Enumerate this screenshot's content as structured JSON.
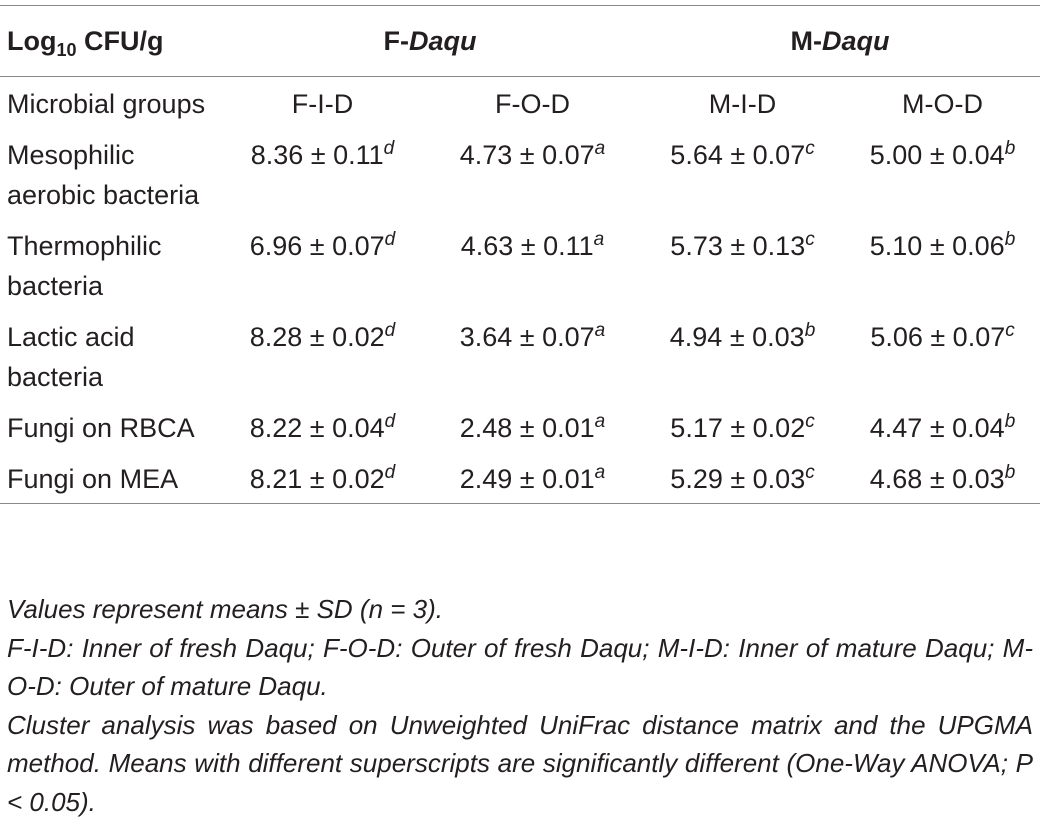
{
  "table": {
    "header": {
      "unit": {
        "prefix": "Log",
        "subscript": "10",
        "suffix": " CFU/g"
      },
      "groups": [
        {
          "prefix": "F-",
          "italic": "Daqu"
        },
        {
          "prefix": "M-",
          "italic": "Daqu"
        }
      ]
    },
    "columns_label": "Microbial groups",
    "columns": [
      "F-I-D",
      "F-O-D",
      "M-I-D",
      "M-O-D"
    ],
    "rows": [
      {
        "label": "Mesophilic aerobic bacteria",
        "cells": [
          {
            "value": "8.36 ± 0.11",
            "sup": "d"
          },
          {
            "value": "4.73 ± 0.07",
            "sup": "a"
          },
          {
            "value": "5.64 ± 0.07",
            "sup": "c"
          },
          {
            "value": "5.00 ± 0.04",
            "sup": "b"
          }
        ]
      },
      {
        "label": "Thermophilic bacteria",
        "cells": [
          {
            "value": "6.96 ± 0.07",
            "sup": "d"
          },
          {
            "value": "4.63 ± 0.11",
            "sup": "a"
          },
          {
            "value": "5.73 ± 0.13",
            "sup": "c"
          },
          {
            "value": "5.10 ± 0.06",
            "sup": "b"
          }
        ]
      },
      {
        "label": "Lactic acid bacteria",
        "cells": [
          {
            "value": "8.28 ± 0.02",
            "sup": "d"
          },
          {
            "value": "3.64 ± 0.07",
            "sup": "a"
          },
          {
            "value": "4.94 ± 0.03",
            "sup": "b"
          },
          {
            "value": "5.06 ± 0.07",
            "sup": "c"
          }
        ]
      },
      {
        "label": "Fungi on RBCA",
        "cells": [
          {
            "value": "8.22 ± 0.04",
            "sup": "d"
          },
          {
            "value": "2.48 ± 0.01",
            "sup": "a"
          },
          {
            "value": "5.17 ± 0.02",
            "sup": "c"
          },
          {
            "value": "4.47 ± 0.04",
            "sup": "b"
          }
        ]
      },
      {
        "label": "Fungi on MEA",
        "cells": [
          {
            "value": "8.21 ± 0.02",
            "sup": "d"
          },
          {
            "value": "2.49 ± 0.01",
            "sup": "a"
          },
          {
            "value": "5.29 ± 0.03",
            "sup": "c"
          },
          {
            "value": "4.68 ± 0.03",
            "sup": "b"
          }
        ]
      }
    ]
  },
  "footnotes": [
    "Values represent means ± SD (n = 3).",
    "F-I-D: Inner of fresh Daqu; F-O-D: Outer of fresh Daqu; M-I-D: Inner of mature Daqu; M-O-D: Outer of mature Daqu.",
    "Cluster analysis was based on Unweighted UniFrac distance matrix and the UPGMA method. Means with different superscripts are significantly different (One-Way ANOVA; P < 0.05)."
  ]
}
